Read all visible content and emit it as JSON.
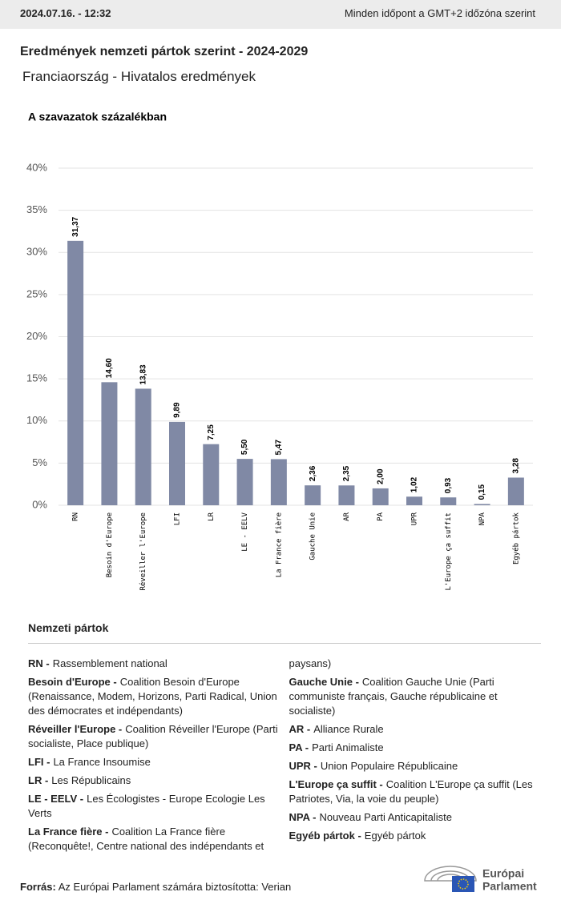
{
  "header": {
    "date": "2024.07.16. - 12:32",
    "timezone": "Minden időpont a GMT+2 időzóna szerint"
  },
  "title": "Eredmények nemzeti pártok szerint - 2024-2029",
  "subtitle": "Franciaország - Hivatalos eredmények",
  "chart_data": {
    "type": "bar",
    "y_label": "A szavazatok százalékban",
    "color": "#8089a5",
    "grid": true,
    "categories": [
      "RN",
      "Besoin d'Europe",
      "Réveiller l'Europe",
      "LFI",
      "LR",
      "LE - EELV",
      "La France fière",
      "Gauche Unie",
      "AR",
      "PA",
      "UPR",
      "L'Europe ça suffit",
      "NPA",
      "Egyéb pártok"
    ],
    "values": [
      31.37,
      14.6,
      13.83,
      9.89,
      7.25,
      5.5,
      5.47,
      2.36,
      2.35,
      2.0,
      1.02,
      0.93,
      0.15,
      3.28
    ],
    "value_labels": [
      "31,37",
      "14,60",
      "13,83",
      "9,89",
      "7,25",
      "5,50",
      "5,47",
      "2,36",
      "2,35",
      "2,00",
      "1,02",
      "0,93",
      "0,15",
      "3,28"
    ],
    "ylim": [
      0,
      40
    ],
    "yticks": [
      {
        "value": 0,
        "label": "0%"
      },
      {
        "value": 5,
        "label": "5%"
      },
      {
        "value": 10,
        "label": "10%"
      },
      {
        "value": 15,
        "label": "15%"
      },
      {
        "value": 20,
        "label": "20%"
      },
      {
        "value": 25,
        "label": "25%"
      },
      {
        "value": 30,
        "label": "30%"
      },
      {
        "value": 35,
        "label": "35%"
      },
      {
        "value": 40,
        "label": "40%"
      }
    ]
  },
  "legend": {
    "heading": "Nemzeti pártok",
    "items": [
      {
        "abbr": "RN -",
        "desc": "Rassemblement national"
      },
      {
        "abbr": "Besoin d'Europe -",
        "desc": "Coalition Besoin d'Europe (Renaissance, Modem, Horizons, Parti Radical, Union des démocrates et indépendants)"
      },
      {
        "abbr": "Réveiller l'Europe -",
        "desc": "Coalition Réveiller l'Europe (Parti socialiste, Place publique)"
      },
      {
        "abbr": "LFI -",
        "desc": "La France Insoumise"
      },
      {
        "abbr": "LR -",
        "desc": "Les Républicains"
      },
      {
        "abbr": "LE - EELV -",
        "desc": "Les Écologistes - Europe Ecologie Les Verts"
      },
      {
        "abbr": "La France fière -",
        "desc": "Coalition La France fière (Reconquête!, Centre national des indépendants et paysans)"
      },
      {
        "abbr": "Gauche Unie -",
        "desc": "Coalition Gauche Unie (Parti communiste français, Gauche républicaine et socialiste)"
      },
      {
        "abbr": "AR -",
        "desc": "Alliance Rurale"
      },
      {
        "abbr": "PA -",
        "desc": "Parti Animaliste"
      },
      {
        "abbr": "UPR -",
        "desc": "Union Populaire Républicaine"
      },
      {
        "abbr": "L'Europe ça suffit -",
        "desc": "Coalition L'Europe ça suffit (Les Patriotes, Via, la voie du peuple)"
      },
      {
        "abbr": "NPA -",
        "desc": "Nouveau Parti Anticapitaliste"
      },
      {
        "abbr": "Egyéb pártok -",
        "desc": "Egyéb pártok"
      }
    ]
  },
  "footer": {
    "source_label": "Forrás:",
    "source": "Az Európai Parlament számára biztosította: Verian"
  },
  "logo": {
    "line1": "Európai",
    "line2": "Parlament"
  }
}
